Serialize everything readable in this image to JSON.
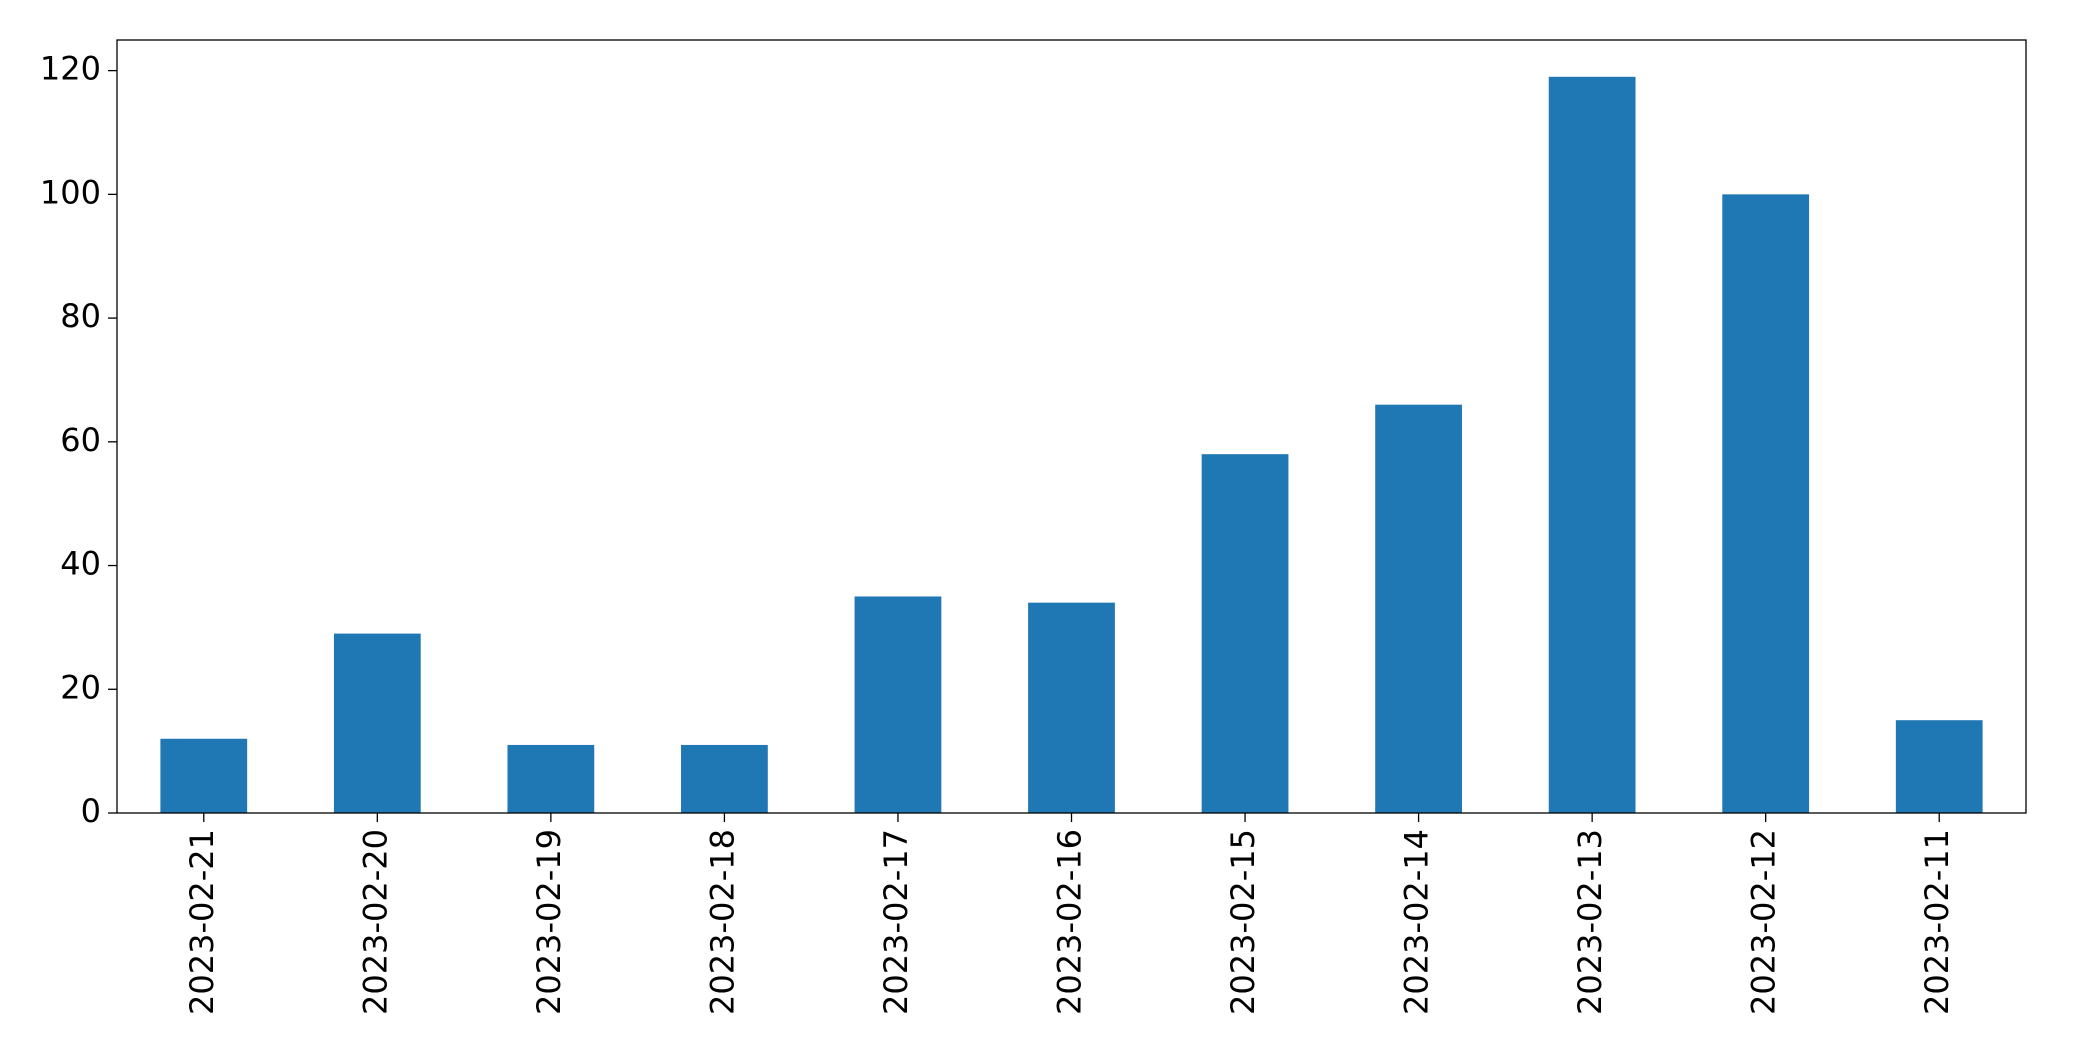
{
  "chart_data": {
    "type": "bar",
    "categories": [
      "2023-02-21",
      "2023-02-20",
      "2023-02-19",
      "2023-02-18",
      "2023-02-17",
      "2023-02-16",
      "2023-02-15",
      "2023-02-14",
      "2023-02-13",
      "2023-02-12",
      "2023-02-11"
    ],
    "values": [
      12,
      29,
      11,
      11,
      35,
      34,
      58,
      66,
      119,
      100,
      15
    ],
    "color": "#1f77b4",
    "ylim": [
      0,
      124.95
    ],
    "yticks": [
      0,
      20,
      40,
      60,
      80,
      100,
      120
    ],
    "grid": false
  }
}
